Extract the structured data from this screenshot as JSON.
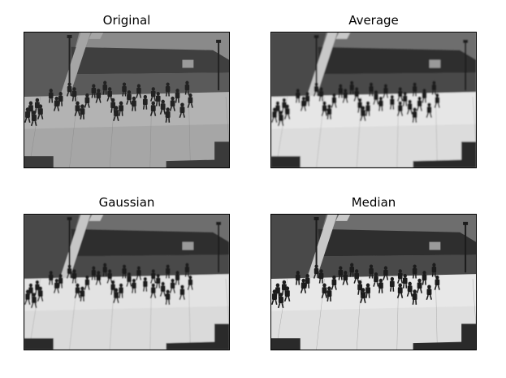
{
  "figure": {
    "panels": [
      {
        "title": "Original",
        "tone": "original"
      },
      {
        "title": "Average",
        "tone": "average"
      },
      {
        "title": "Gaussian",
        "tone": "gaussian"
      },
      {
        "title": "Median",
        "tone": "median"
      }
    ]
  }
}
